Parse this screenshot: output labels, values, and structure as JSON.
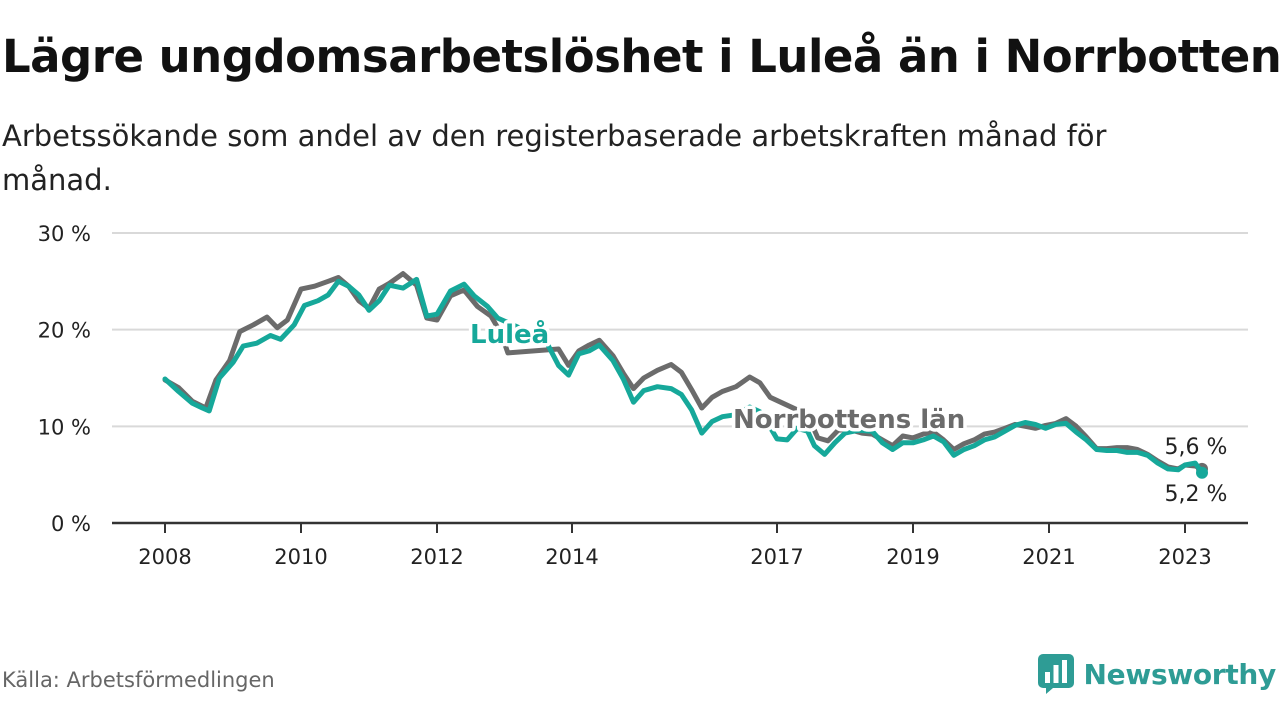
{
  "title": "Lägre ungdomsarbetslöshet i Luleå än i Norrbotten",
  "subtitle": "Arbetssökande som andel av den registerbaserade arbetskraften månad för månad.",
  "source": "Källa: Arbetsförmedlingen",
  "brand": "Newsworthy",
  "colors": {
    "lulea": "#16a89a",
    "norrbotten": "#6b6b6b",
    "grid": "#d9d9d9",
    "axis": "#333333",
    "brand": "#2e9c95"
  },
  "chart_data": {
    "type": "line",
    "title": "Lägre ungdomsarbetslöshet i Luleå än i Norrbotten",
    "xlabel": "",
    "ylabel": "",
    "ylim": [
      0,
      30
    ],
    "xlim": [
      2008.0,
      2023.3
    ],
    "yticks": [
      0,
      10,
      20,
      30
    ],
    "ytick_labels": [
      "0 %",
      "10 %",
      "20 %",
      "30 %"
    ],
    "xticks": [
      2008,
      2010,
      2012,
      2014,
      2017,
      2019,
      2021,
      2023
    ],
    "xtick_labels": [
      "2008",
      "2010",
      "2012",
      "2014",
      "2017",
      "2019",
      "2021",
      "2023"
    ],
    "tick_positions": [
      2008,
      2010,
      2012,
      2014,
      2017,
      2019,
      2021,
      2023
    ],
    "series": [
      {
        "name": "Norrbottens län",
        "label": "Norrbottens län",
        "end_label": "5,6 %",
        "points": [
          [
            2008.0,
            14.8
          ],
          [
            2008.2,
            14.0
          ],
          [
            2008.4,
            12.6
          ],
          [
            2008.6,
            11.9
          ],
          [
            2008.75,
            14.8
          ],
          [
            2008.95,
            16.8
          ],
          [
            2009.1,
            19.8
          ],
          [
            2009.3,
            20.5
          ],
          [
            2009.5,
            21.3
          ],
          [
            2009.65,
            20.2
          ],
          [
            2009.8,
            21.0
          ],
          [
            2010.0,
            24.2
          ],
          [
            2010.2,
            24.5
          ],
          [
            2010.4,
            25.0
          ],
          [
            2010.55,
            25.4
          ],
          [
            2010.7,
            24.5
          ],
          [
            2010.85,
            23.0
          ],
          [
            2011.0,
            22.2
          ],
          [
            2011.15,
            24.2
          ],
          [
            2011.3,
            24.8
          ],
          [
            2011.5,
            25.8
          ],
          [
            2011.7,
            24.6
          ],
          [
            2011.85,
            21.2
          ],
          [
            2012.0,
            21.0
          ],
          [
            2012.2,
            23.5
          ],
          [
            2012.4,
            24.1
          ],
          [
            2012.6,
            22.4
          ],
          [
            2012.8,
            21.4
          ],
          [
            2012.95,
            19.6
          ],
          [
            2013.05,
            17.6
          ],
          [
            2013.8,
            18.0
          ],
          [
            2013.95,
            16.3
          ],
          [
            2014.1,
            17.8
          ],
          [
            2014.25,
            18.4
          ],
          [
            2014.4,
            18.9
          ],
          [
            2014.6,
            17.3
          ],
          [
            2014.75,
            15.5
          ],
          [
            2014.9,
            13.9
          ],
          [
            2015.05,
            15.0
          ],
          [
            2015.25,
            15.8
          ],
          [
            2015.45,
            16.4
          ],
          [
            2015.6,
            15.6
          ],
          [
            2015.75,
            13.8
          ],
          [
            2015.9,
            11.9
          ],
          [
            2016.05,
            13.0
          ],
          [
            2016.2,
            13.6
          ],
          [
            2016.4,
            14.1
          ],
          [
            2016.6,
            15.1
          ],
          [
            2016.75,
            14.5
          ],
          [
            2016.9,
            13.0
          ],
          [
            2017.45,
            11.2
          ],
          [
            2017.6,
            8.8
          ],
          [
            2017.75,
            8.5
          ],
          [
            2017.9,
            9.6
          ],
          [
            2018.05,
            9.7
          ],
          [
            2018.25,
            9.3
          ],
          [
            2018.4,
            9.2
          ],
          [
            2018.55,
            8.6
          ],
          [
            2018.7,
            8.0
          ],
          [
            2018.85,
            9.0
          ],
          [
            2019.0,
            8.8
          ],
          [
            2019.15,
            9.2
          ],
          [
            2019.3,
            9.4
          ],
          [
            2019.45,
            8.6
          ],
          [
            2019.6,
            7.6
          ],
          [
            2019.75,
            8.2
          ],
          [
            2019.9,
            8.6
          ],
          [
            2020.05,
            9.2
          ],
          [
            2020.2,
            9.4
          ],
          [
            2020.35,
            9.8
          ],
          [
            2020.5,
            10.2
          ],
          [
            2020.65,
            10.0
          ],
          [
            2020.8,
            9.8
          ],
          [
            2020.95,
            10.1
          ],
          [
            2021.1,
            10.3
          ],
          [
            2021.25,
            10.8
          ],
          [
            2021.4,
            10.0
          ],
          [
            2021.55,
            8.9
          ],
          [
            2021.7,
            7.7
          ],
          [
            2021.85,
            7.7
          ],
          [
            2022.0,
            7.8
          ],
          [
            2022.15,
            7.8
          ],
          [
            2022.3,
            7.6
          ],
          [
            2022.45,
            7.1
          ],
          [
            2022.6,
            6.4
          ],
          [
            2022.75,
            5.8
          ],
          [
            2022.9,
            5.6
          ],
          [
            2023.0,
            6.0
          ],
          [
            2023.15,
            5.9
          ],
          [
            2023.25,
            5.6
          ]
        ]
      },
      {
        "name": "Luleå",
        "label": "Luleå",
        "end_label": "5,2 %",
        "points": [
          [
            2008.0,
            14.9
          ],
          [
            2008.2,
            13.6
          ],
          [
            2008.4,
            12.4
          ],
          [
            2008.55,
            11.9
          ],
          [
            2008.65,
            11.6
          ],
          [
            2008.8,
            15.0
          ],
          [
            2009.0,
            16.6
          ],
          [
            2009.15,
            18.3
          ],
          [
            2009.35,
            18.6
          ],
          [
            2009.55,
            19.4
          ],
          [
            2009.7,
            19.0
          ],
          [
            2009.9,
            20.5
          ],
          [
            2010.05,
            22.5
          ],
          [
            2010.25,
            23.0
          ],
          [
            2010.4,
            23.6
          ],
          [
            2010.55,
            25.0
          ],
          [
            2010.7,
            24.5
          ],
          [
            2010.85,
            23.6
          ],
          [
            2011.0,
            22.0
          ],
          [
            2011.15,
            23.0
          ],
          [
            2011.3,
            24.6
          ],
          [
            2011.5,
            24.3
          ],
          [
            2011.7,
            25.2
          ],
          [
            2011.85,
            21.4
          ],
          [
            2012.0,
            21.6
          ],
          [
            2012.2,
            24.0
          ],
          [
            2012.4,
            24.7
          ],
          [
            2012.55,
            23.5
          ],
          [
            2012.75,
            22.4
          ],
          [
            2012.9,
            21.2
          ],
          [
            2013.6,
            19.0
          ],
          [
            2013.8,
            16.3
          ],
          [
            2013.95,
            15.3
          ],
          [
            2014.1,
            17.5
          ],
          [
            2014.25,
            17.8
          ],
          [
            2014.4,
            18.4
          ],
          [
            2014.6,
            16.8
          ],
          [
            2014.75,
            14.9
          ],
          [
            2014.9,
            12.5
          ],
          [
            2015.05,
            13.7
          ],
          [
            2015.25,
            14.1
          ],
          [
            2015.45,
            13.9
          ],
          [
            2015.6,
            13.3
          ],
          [
            2015.75,
            11.7
          ],
          [
            2015.9,
            9.3
          ],
          [
            2016.05,
            10.5
          ],
          [
            2016.2,
            11.0
          ],
          [
            2016.4,
            11.2
          ],
          [
            2016.6,
            12.0
          ],
          [
            2016.75,
            11.5
          ],
          [
            2016.9,
            9.9
          ],
          [
            2017.0,
            8.7
          ],
          [
            2017.15,
            8.6
          ],
          [
            2017.25,
            9.4
          ],
          [
            2017.3,
            9.8
          ],
          [
            2017.45,
            9.5
          ],
          [
            2017.55,
            8.0
          ],
          [
            2017.7,
            7.1
          ],
          [
            2017.85,
            8.3
          ],
          [
            2018.0,
            9.3
          ],
          [
            2018.2,
            9.6
          ],
          [
            2018.4,
            9.5
          ],
          [
            2018.55,
            8.3
          ],
          [
            2018.7,
            7.6
          ],
          [
            2018.85,
            8.3
          ],
          [
            2019.0,
            8.3
          ],
          [
            2019.15,
            8.6
          ],
          [
            2019.3,
            9.0
          ],
          [
            2019.45,
            8.4
          ],
          [
            2019.6,
            7.0
          ],
          [
            2019.75,
            7.6
          ],
          [
            2019.9,
            8.0
          ],
          [
            2020.05,
            8.6
          ],
          [
            2020.2,
            8.9
          ],
          [
            2020.35,
            9.5
          ],
          [
            2020.5,
            10.1
          ],
          [
            2020.65,
            10.4
          ],
          [
            2020.8,
            10.2
          ],
          [
            2020.95,
            9.8
          ],
          [
            2021.1,
            10.2
          ],
          [
            2021.25,
            10.3
          ],
          [
            2021.4,
            9.4
          ],
          [
            2021.55,
            8.6
          ],
          [
            2021.7,
            7.6
          ],
          [
            2021.85,
            7.5
          ],
          [
            2022.0,
            7.5
          ],
          [
            2022.15,
            7.3
          ],
          [
            2022.3,
            7.3
          ],
          [
            2022.45,
            7.0
          ],
          [
            2022.6,
            6.2
          ],
          [
            2022.75,
            5.6
          ],
          [
            2022.9,
            5.5
          ],
          [
            2023.0,
            6.0
          ],
          [
            2023.15,
            6.2
          ],
          [
            2023.25,
            5.2
          ]
        ]
      }
    ]
  }
}
